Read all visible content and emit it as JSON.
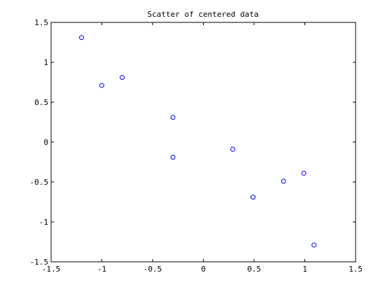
{
  "chart_data": {
    "type": "scatter",
    "title": "Scatter of centered data",
    "xlabel": "",
    "ylabel": "",
    "xlim": [
      -1.5,
      1.5
    ],
    "ylim": [
      -1.5,
      1.5
    ],
    "x_ticks": [
      -1.5,
      -1,
      -0.5,
      0,
      0.5,
      1,
      1.5
    ],
    "x_tick_labels": [
      "-1.5",
      "-1",
      "-0.5",
      "0",
      "0.5",
      "1",
      "1.5"
    ],
    "y_ticks": [
      1.5,
      1,
      0.5,
      0,
      -0.5,
      -1,
      -1.5
    ],
    "y_tick_labels": [
      "1.5",
      "1",
      "0.5",
      "0",
      "-0.5",
      "-1",
      "-1.5"
    ],
    "grid": false,
    "marker": "circle-open",
    "marker_color": "#0000ff",
    "axis_color": "#000000",
    "points": [
      {
        "x": -1.2,
        "y": 1.31
      },
      {
        "x": -1.0,
        "y": 0.71
      },
      {
        "x": -0.8,
        "y": 0.81
      },
      {
        "x": -0.3,
        "y": 0.31
      },
      {
        "x": -0.3,
        "y": -0.19
      },
      {
        "x": 0.29,
        "y": -0.09
      },
      {
        "x": 0.49,
        "y": -0.69
      },
      {
        "x": 0.79,
        "y": -0.49
      },
      {
        "x": 0.99,
        "y": -0.39
      },
      {
        "x": 1.09,
        "y": -1.29
      }
    ]
  }
}
